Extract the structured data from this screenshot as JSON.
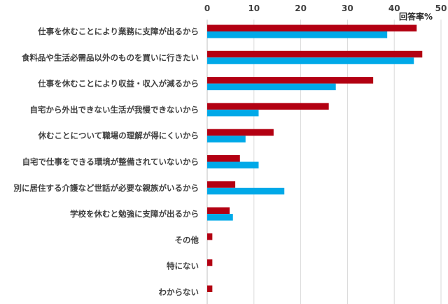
{
  "chart_data": {
    "type": "bar",
    "orientation": "horizontal",
    "unit_label": "回答率%",
    "xlim": [
      0,
      50
    ],
    "x_ticks": [
      0,
      10,
      20,
      30,
      40,
      50
    ],
    "x_tick_labels": [
      "0",
      "10",
      "20",
      "30",
      "40",
      "50"
    ],
    "x_axis_position": "top",
    "grid": true,
    "categories": [
      "仕事を休むことにより業務に支障が出るから",
      "食料品や生活必需品以外のものを買いに行きたい",
      "仕事を休むことにより収益・収入が減るから",
      "自宅から外出できない生活が我慢できないから",
      "休むことについて職場の理解が得にくいから",
      "自宅で仕事をできる環境が整備されていないから",
      "別に居住する介護など世話が必要な親族がいるから",
      "学校を休むと勉強に支障が出るから",
      "その他",
      "特にない",
      "わからない"
    ],
    "series": [
      {
        "color": "#b30012",
        "values": [
          44.8,
          46.0,
          35.5,
          26.0,
          14.2,
          7.0,
          6.0,
          4.8,
          1.1,
          1.1,
          1.1
        ]
      },
      {
        "color": "#00a9e8",
        "values": [
          38.5,
          44.2,
          27.5,
          11.0,
          8.2,
          11.0,
          16.5,
          5.5,
          null,
          null,
          null
        ]
      }
    ]
  }
}
